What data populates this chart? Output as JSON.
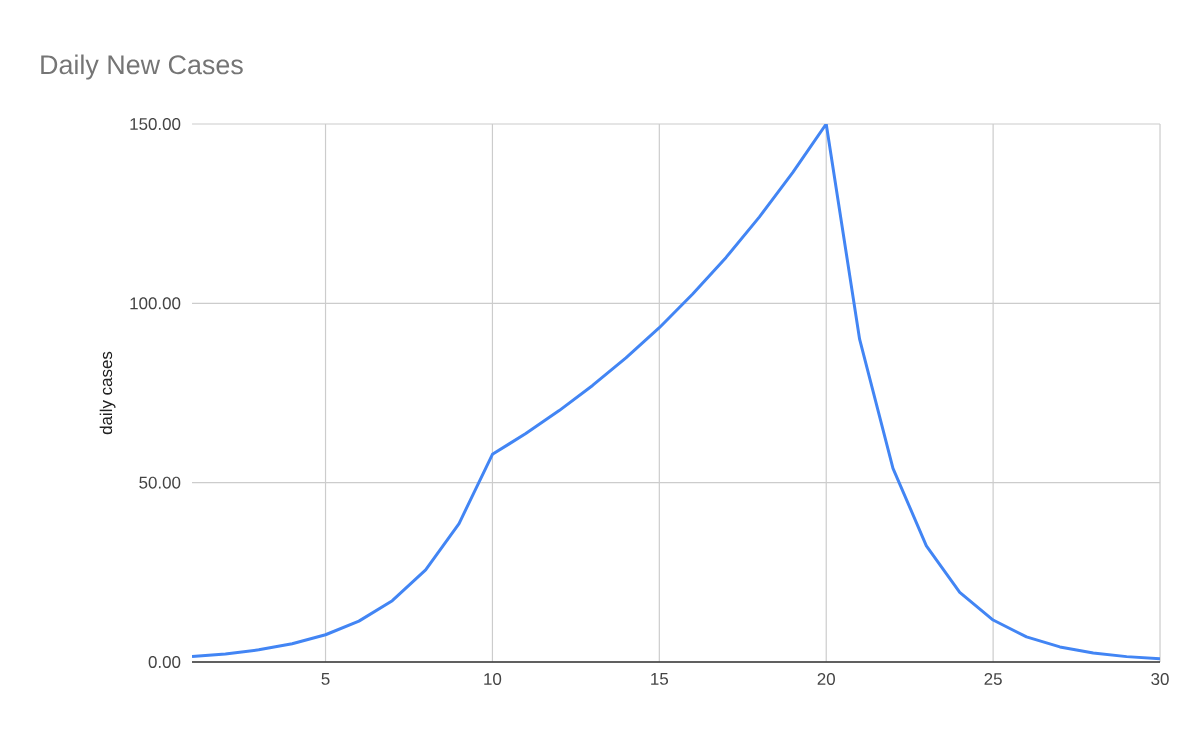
{
  "chart_data": {
    "type": "line",
    "title": "Daily New Cases",
    "ylabel": "daily cases",
    "x": [
      1,
      2,
      3,
      4,
      5,
      6,
      7,
      8,
      9,
      10,
      11,
      12,
      13,
      14,
      15,
      16,
      17,
      18,
      19,
      20,
      21,
      22,
      23,
      24,
      25,
      26,
      27,
      28,
      29,
      30
    ],
    "series": [
      {
        "color": "#4285f4",
        "values": [
          1.5,
          2.25,
          3.4,
          5.1,
          7.6,
          11.4,
          17.1,
          25.7,
          38.6,
          57.9,
          63.7,
          70.1,
          77.1,
          84.8,
          93.2,
          102.6,
          112.8,
          124.1,
          136.5,
          150,
          90,
          54,
          32.4,
          19.4,
          11.7,
          7,
          4.2,
          2.5,
          1.5,
          0.9
        ]
      }
    ],
    "xlim": [
      1,
      30
    ],
    "xticks": [
      5,
      10,
      15,
      20,
      25,
      30
    ],
    "ylim": [
      0,
      150
    ],
    "yticks": [
      {
        "value": 0,
        "label": "0.00"
      },
      {
        "value": 50,
        "label": "50.00"
      },
      {
        "value": 100,
        "label": "100.00"
      },
      {
        "value": 150,
        "label": "150.00"
      }
    ],
    "grid": true,
    "legend": false,
    "marker": "none",
    "line_style": "solid"
  }
}
